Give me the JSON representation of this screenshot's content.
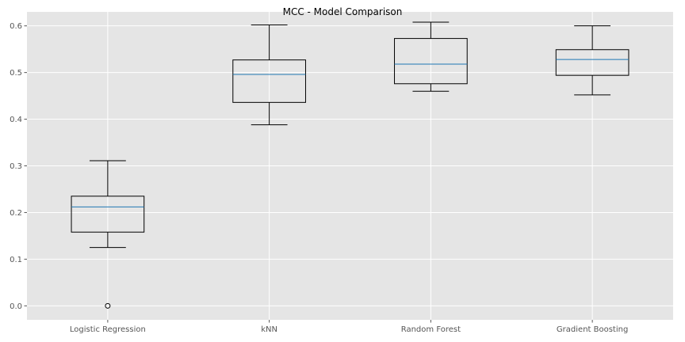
{
  "chart_data": {
    "type": "box",
    "title": "MCC - Model Comparison",
    "xlabel": "",
    "ylabel": "",
    "categories": [
      "Logistic Regression",
      "kNN",
      "Random Forest",
      "Gradient Boosting"
    ],
    "ylim": [
      -0.03,
      0.63
    ],
    "yticks": [
      0.0,
      0.1,
      0.2,
      0.3,
      0.4,
      0.5,
      0.6
    ],
    "ytick_labels": [
      "0.0",
      "0.1",
      "0.2",
      "0.3",
      "0.4",
      "0.5",
      "0.6"
    ],
    "grid": true,
    "boxes": [
      {
        "category": "Logistic Regression",
        "whisker_low": 0.125,
        "q1": 0.158,
        "median": 0.212,
        "q3": 0.235,
        "whisker_high": 0.311,
        "outliers": [
          0.0
        ]
      },
      {
        "category": "kNN",
        "whisker_low": 0.388,
        "q1": 0.436,
        "median": 0.496,
        "q3": 0.527,
        "whisker_high": 0.602,
        "outliers": []
      },
      {
        "category": "Random Forest",
        "whisker_low": 0.46,
        "q1": 0.476,
        "median": 0.518,
        "q3": 0.573,
        "whisker_high": 0.608,
        "outliers": []
      },
      {
        "category": "Gradient Boosting",
        "whisker_low": 0.452,
        "q1": 0.494,
        "median": 0.528,
        "q3": 0.549,
        "whisker_high": 0.6,
        "outliers": []
      }
    ],
    "colors": {
      "background": "#e5e5e5",
      "grid": "#ffffff",
      "box": "#000000",
      "median": "#1f77b4"
    }
  }
}
